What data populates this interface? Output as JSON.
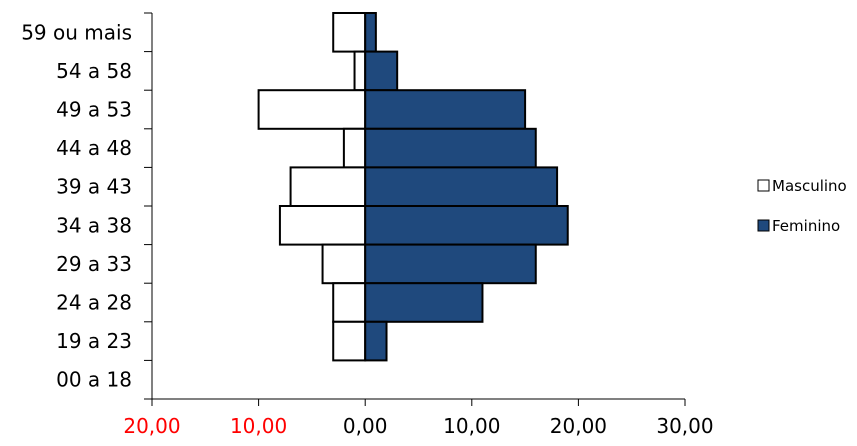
{
  "chart_data": {
    "type": "bar",
    "orientation": "horizontal",
    "subtype": "population-pyramid",
    "title": "",
    "xlabel": "",
    "ylabel": "",
    "categories": [
      "59 ou mais",
      "54 a 58",
      "49 a 53",
      "44 a 48",
      "39 a 43",
      "34 a 38",
      "29 a 33",
      "24 a 28",
      "19 a 23",
      "00 a 18"
    ],
    "series": [
      {
        "name": "Masculino",
        "values": [
          3,
          1,
          10,
          2,
          7,
          8,
          4,
          3,
          3,
          0
        ],
        "direction": "left",
        "fill": "#ffffff",
        "stroke": "#000000"
      },
      {
        "name": "Feminino",
        "values": [
          1,
          3,
          15,
          16,
          18,
          19,
          16,
          11,
          2,
          0
        ],
        "direction": "right",
        "fill": "#1f497d",
        "stroke": "#000000"
      }
    ],
    "xlim": [
      -20,
      30
    ],
    "x_ticks": [
      {
        "value": -20,
        "label": "20,00",
        "color": "#ff0000"
      },
      {
        "value": -10,
        "label": "10,00",
        "color": "#ff0000"
      },
      {
        "value": 0,
        "label": "0,00",
        "color": "#000000"
      },
      {
        "value": 10,
        "label": "10,00",
        "color": "#000000"
      },
      {
        "value": 20,
        "label": "20,00",
        "color": "#000000"
      },
      {
        "value": 30,
        "label": "30,00",
        "color": "#000000"
      }
    ],
    "grid": false,
    "legend": {
      "position": "right",
      "entries": [
        "Masculino",
        "Feminino"
      ]
    }
  }
}
